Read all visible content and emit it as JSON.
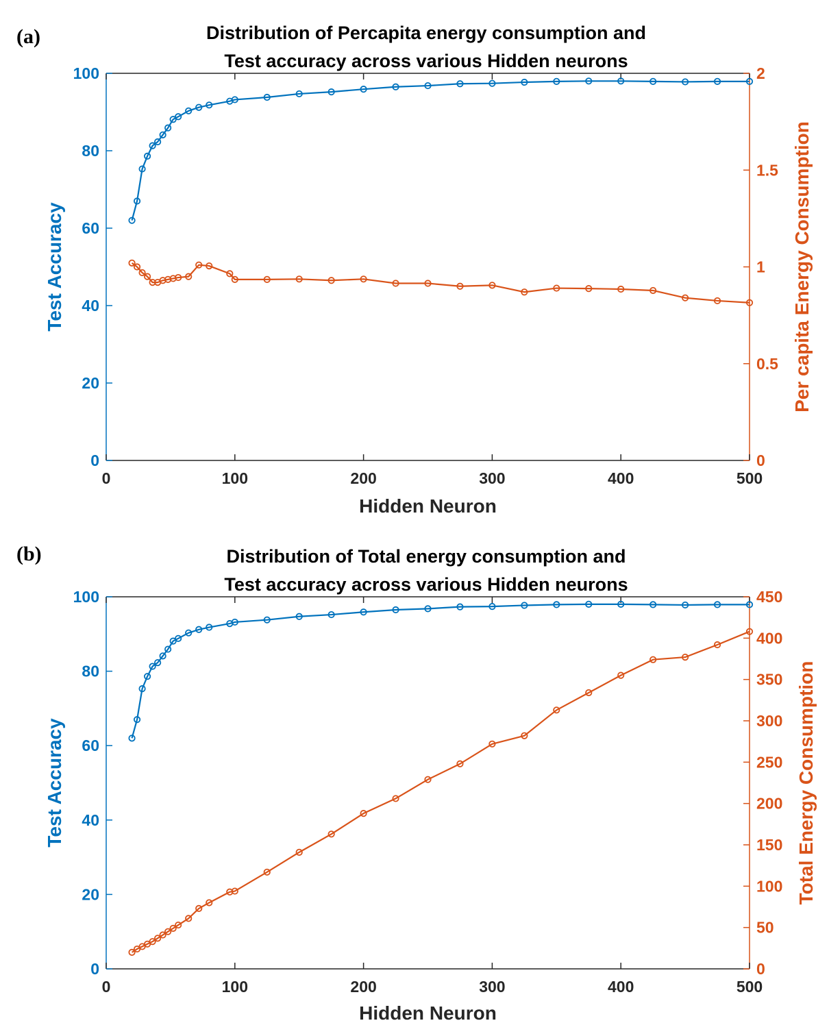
{
  "colors": {
    "accuracy": "#0072BD",
    "energy": "#D95319",
    "axis": "#262626",
    "background": "#ffffff"
  },
  "chart_data": [
    {
      "type": "line",
      "panel_label": "(a)",
      "title_lines": [
        "Distribution of Percapita energy consumption and",
        "Test accuracy across various Hidden neurons"
      ],
      "xlabel": "Hidden Neuron",
      "ylabel_left": "Test Accuracy",
      "ylabel_right": "Per capita Energy Consumption",
      "xlim": [
        0,
        500
      ],
      "ylim_left": [
        0,
        100
      ],
      "ylim_right": [
        0,
        2
      ],
      "xticks": [
        "0",
        "100",
        "200",
        "300",
        "400",
        "500"
      ],
      "yticks_left": [
        "0",
        "20",
        "40",
        "60",
        "80",
        "100"
      ],
      "yticks_right": [
        "0",
        "0.5",
        "1",
        "1.5",
        "2"
      ],
      "grid": false,
      "x": [
        20,
        24,
        28,
        32,
        36,
        40,
        44,
        48,
        52,
        56,
        64,
        72,
        80,
        96,
        100,
        125,
        150,
        175,
        200,
        225,
        250,
        275,
        300,
        325,
        350,
        375,
        400,
        425,
        450,
        475,
        500
      ],
      "series": [
        {
          "axis": "left",
          "values": [
            62,
            67,
            75.3,
            78.6,
            81.3,
            82.3,
            84.1,
            85.9,
            88.1,
            88.8,
            90.3,
            91.2,
            91.8,
            92.8,
            93.2,
            93.8,
            94.7,
            95.2,
            95.9,
            96.5,
            96.8,
            97.3,
            97.4,
            97.7,
            97.9,
            98.0,
            98.0,
            97.9,
            97.8,
            97.9,
            97.9
          ]
        },
        {
          "axis": "right",
          "values": [
            1.02,
            1.0,
            0.97,
            0.95,
            0.92,
            0.92,
            0.93,
            0.935,
            0.94,
            0.945,
            0.95,
            1.01,
            1.005,
            0.965,
            0.935,
            0.935,
            0.937,
            0.93,
            0.937,
            0.915,
            0.915,
            0.9,
            0.905,
            0.87,
            0.89,
            0.888,
            0.885,
            0.878,
            0.84,
            0.825,
            0.815
          ]
        }
      ]
    },
    {
      "type": "line",
      "panel_label": "(b)",
      "title_lines": [
        "Distribution of Total energy consumption and",
        "Test accuracy across various Hidden neurons"
      ],
      "xlabel": "Hidden Neuron",
      "ylabel_left": "Test Accuracy",
      "ylabel_right": "Total Energy Consumption",
      "xlim": [
        0,
        500
      ],
      "ylim_left": [
        0,
        100
      ],
      "ylim_right": [
        0,
        450
      ],
      "xticks": [
        "0",
        "100",
        "200",
        "300",
        "400",
        "500"
      ],
      "yticks_left": [
        "0",
        "20",
        "40",
        "60",
        "80",
        "100"
      ],
      "yticks_right": [
        "0",
        "50",
        "100",
        "150",
        "200",
        "250",
        "300",
        "350",
        "400",
        "450"
      ],
      "grid": false,
      "x": [
        20,
        24,
        28,
        32,
        36,
        40,
        44,
        48,
        52,
        56,
        64,
        72,
        80,
        96,
        100,
        125,
        150,
        175,
        200,
        225,
        250,
        275,
        300,
        325,
        350,
        375,
        400,
        425,
        450,
        475,
        500
      ],
      "series": [
        {
          "axis": "left",
          "values": [
            62,
            67,
            75.3,
            78.6,
            81.3,
            82.3,
            84.1,
            85.9,
            88.1,
            88.8,
            90.3,
            91.2,
            91.8,
            92.8,
            93.2,
            93.8,
            94.7,
            95.2,
            95.9,
            96.5,
            96.8,
            97.3,
            97.4,
            97.7,
            97.9,
            98.0,
            98.0,
            97.9,
            97.8,
            97.9,
            97.9
          ]
        },
        {
          "axis": "right",
          "values": [
            20,
            24,
            27,
            30,
            33,
            37,
            41,
            45,
            49,
            53,
            61,
            73,
            80,
            93,
            94,
            117,
            141,
            163,
            188,
            206,
            229,
            248,
            272,
            282,
            313,
            334,
            355,
            374,
            377,
            392,
            408
          ]
        }
      ]
    }
  ]
}
